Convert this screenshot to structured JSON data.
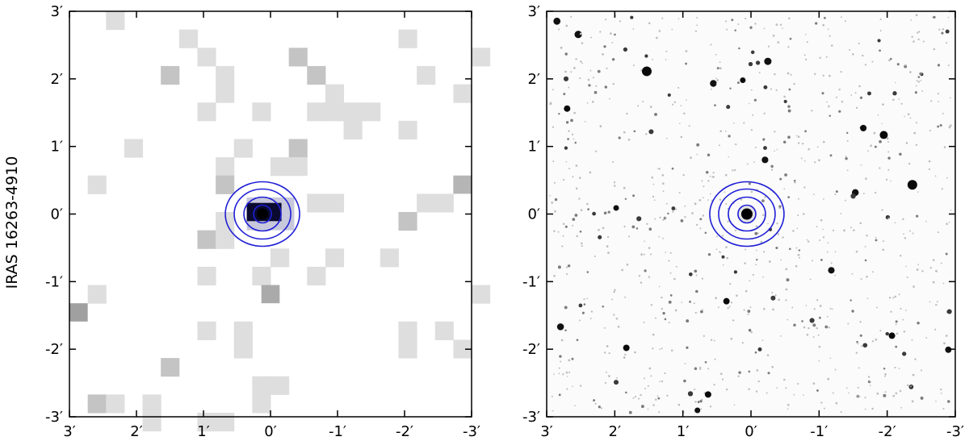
{
  "figure": {
    "source_label": "IRAS 16263-4910",
    "contour_color": "#1f1fd6"
  },
  "panels": [
    {
      "name": "left-panel",
      "kind": "pixelated",
      "x_ticks": [
        "3′",
        "2′",
        "1′",
        "0′",
        "-1′",
        "-2′",
        "-3′"
      ],
      "y_ticks": [
        "3′",
        "2′",
        "1′",
        "0′",
        "-1′",
        "-2′",
        "-3′"
      ]
    },
    {
      "name": "right-panel",
      "kind": "starfield",
      "x_ticks": [
        "3′",
        "2′",
        "1′",
        "0′",
        "-1′",
        "-2′",
        "-3′"
      ],
      "y_ticks": [
        "3′",
        "2′",
        "1′",
        "0′",
        "-1′",
        "-2′",
        "-3′"
      ]
    }
  ]
}
